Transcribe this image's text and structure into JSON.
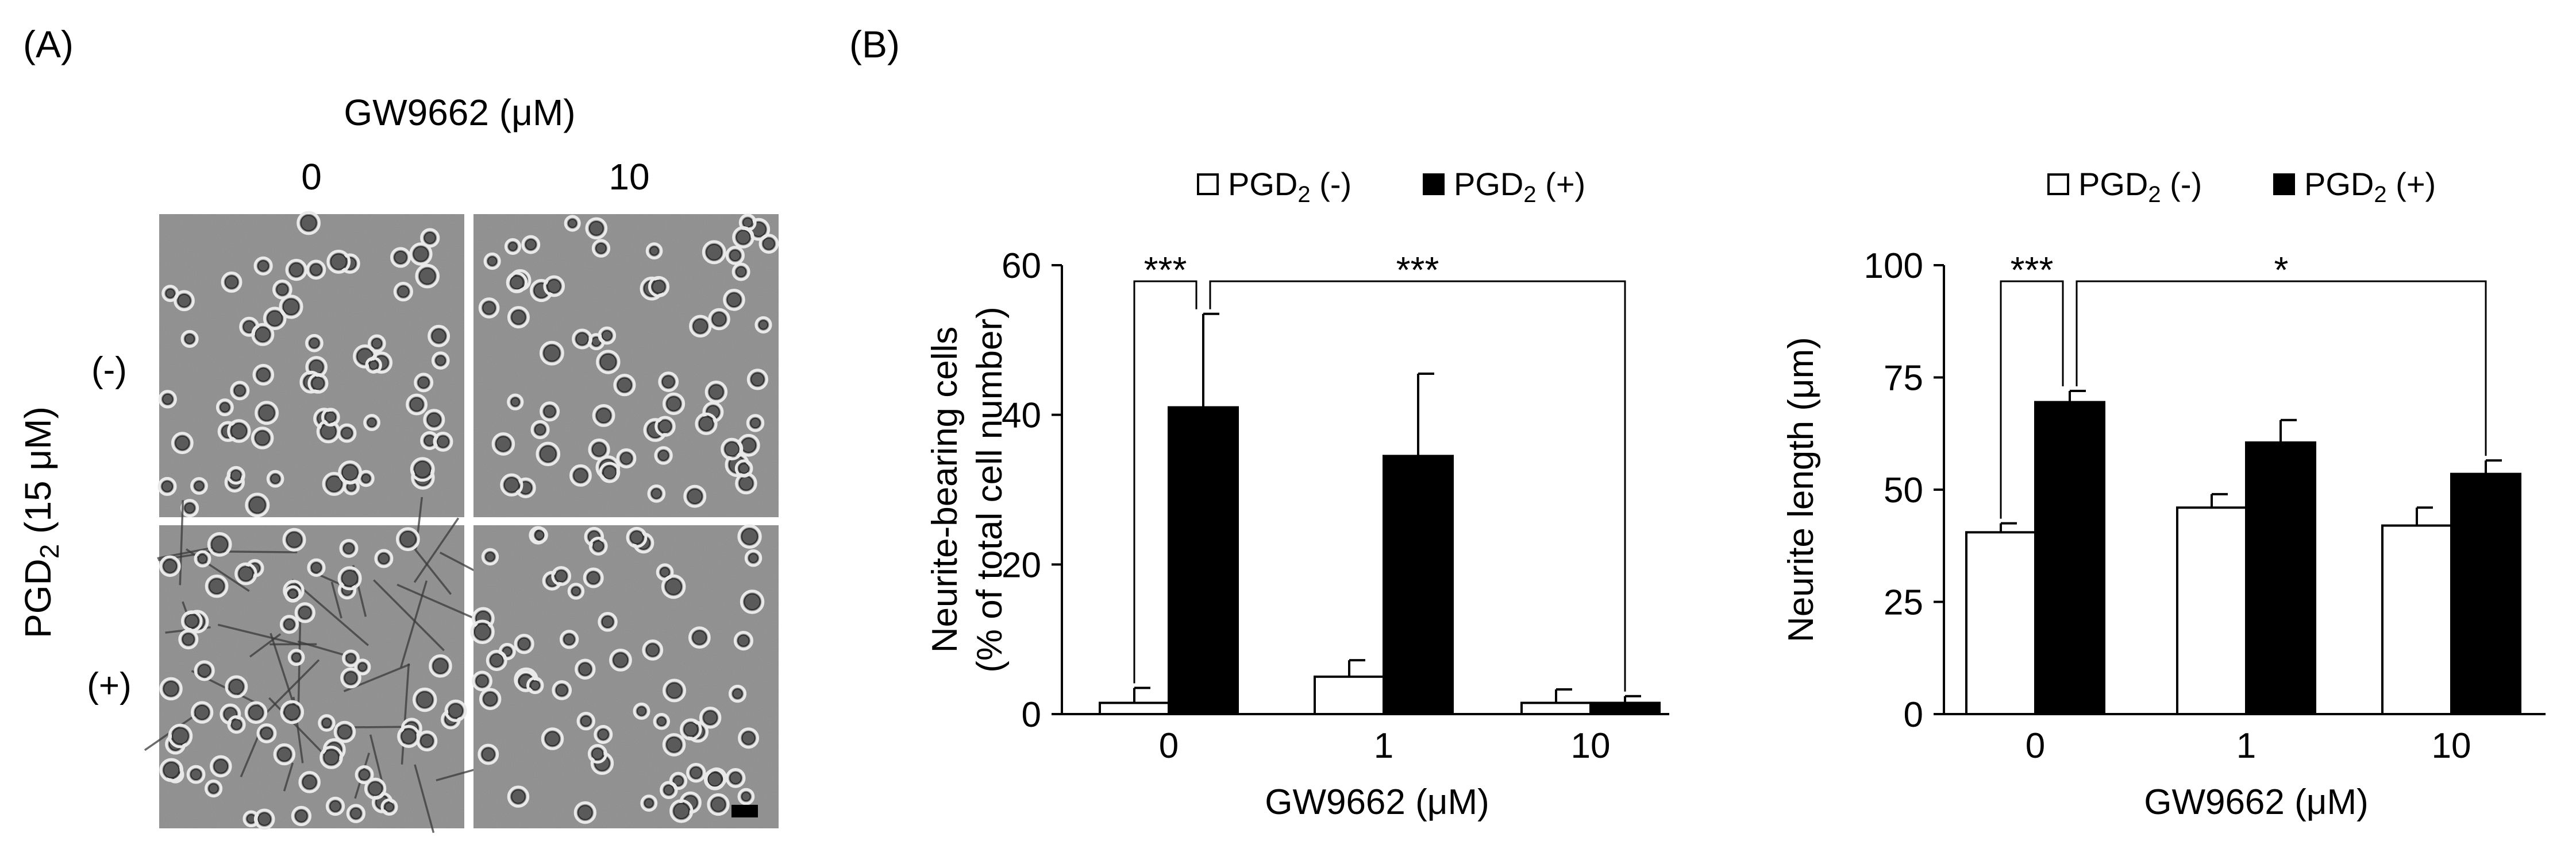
{
  "panel_a": {
    "label": "(A)",
    "column_header": "GW9662 (μM)",
    "columns": [
      "0",
      "10"
    ],
    "row_axis_label": {
      "prefix": "PGD",
      "subscript": "2",
      "suffix": " (15 μM)"
    },
    "rows": [
      "(-)",
      "(+)"
    ]
  },
  "panel_b": {
    "label": "(B)"
  },
  "chart_data": [
    {
      "type": "bar",
      "title": "",
      "xlabel": "GW9662 (μM)",
      "ylabel": [
        "Neurite-bearing cells",
        "(% of total cell number)"
      ],
      "categories": [
        "0",
        "1",
        "10"
      ],
      "ylim": [
        0,
        60
      ],
      "yticks": [
        0,
        20,
        40,
        60
      ],
      "legend_position": "top",
      "series": [
        {
          "name": {
            "prefix": "PGD",
            "subscript": "2",
            "suffix": " (-)"
          },
          "color": "#ffffff",
          "values": [
            1.5,
            5,
            1.5
          ],
          "errors": [
            2.0,
            2.2,
            1.8
          ]
        },
        {
          "name": {
            "prefix": "PGD",
            "subscript": "2",
            "suffix": " (+)"
          },
          "color": "#000000",
          "values": [
            41,
            34.5,
            1.5
          ],
          "errors": [
            12.5,
            11,
            0.9
          ]
        }
      ],
      "significance": [
        {
          "label": "***",
          "from": {
            "category": 0,
            "series": 0
          },
          "to": {
            "category": 0,
            "series": 1
          }
        },
        {
          "label": "***",
          "from": {
            "category": 0,
            "series": 1
          },
          "to": {
            "category": 2,
            "series": 1
          }
        }
      ]
    },
    {
      "type": "bar",
      "title": "",
      "xlabel": "GW9662 (μM)",
      "ylabel": [
        "Neurite length (μm)"
      ],
      "categories": [
        "0",
        "1",
        "10"
      ],
      "ylim": [
        0,
        100
      ],
      "yticks": [
        0,
        25,
        50,
        75,
        100
      ],
      "legend_position": "top",
      "series": [
        {
          "name": {
            "prefix": "PGD",
            "subscript": "2",
            "suffix": " (-)"
          },
          "color": "#ffffff",
          "values": [
            40.5,
            46,
            42
          ],
          "errors": [
            2,
            3,
            4
          ]
        },
        {
          "name": {
            "prefix": "PGD",
            "subscript": "2",
            "suffix": " (+)"
          },
          "color": "#000000",
          "values": [
            69.5,
            60.5,
            53.5
          ],
          "errors": [
            2.5,
            5,
            3
          ]
        }
      ],
      "significance": [
        {
          "label": "***",
          "from": {
            "category": 0,
            "series": 0
          },
          "to": {
            "category": 0,
            "series": 1
          }
        },
        {
          "label": "*",
          "from": {
            "category": 0,
            "series": 1
          },
          "to": {
            "category": 2,
            "series": 1
          }
        }
      ]
    }
  ]
}
